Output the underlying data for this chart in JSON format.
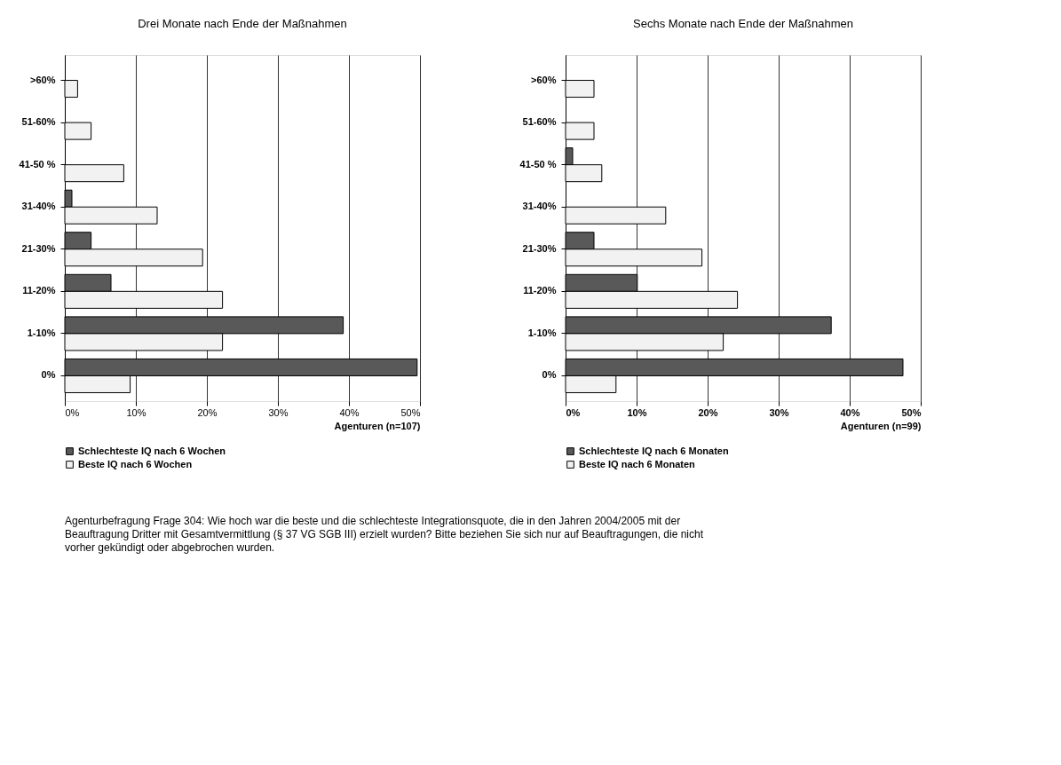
{
  "chart_data": [
    {
      "type": "bar",
      "orientation": "horizontal",
      "title": "Drei Monate nach Ende der Maßnahmen",
      "xlabel": "Agenturen (n=107)",
      "categories": [
        ">60%",
        "51-60%",
        "41-50 %",
        "31-40%",
        "21-30%",
        "11-20%",
        "1-10%",
        "0%"
      ],
      "series": [
        {
          "name": "Schlechteste IQ nach 6 Wochen",
          "color": "#595959",
          "values": [
            null,
            null,
            null,
            1.0,
            3.7,
            6.5,
            39.2,
            49.6
          ]
        },
        {
          "name": "Beste IQ nach 6 Wochen",
          "color": "#f2f2f2",
          "values": [
            1.8,
            3.7,
            8.3,
            13.0,
            19.4,
            22.2,
            22.2,
            9.2
          ]
        }
      ],
      "xlim": [
        0,
        50
      ],
      "xticks": [
        {
          "value": 0,
          "label": "0%"
        },
        {
          "value": 10,
          "label": "10%"
        },
        {
          "value": 20,
          "label": "20%"
        },
        {
          "value": 30,
          "label": "30%"
        },
        {
          "value": 40,
          "label": "40%"
        },
        {
          "value": 50,
          "label": "50%"
        }
      ],
      "grid": "x",
      "legend": "bottom left",
      "annotations": [
        "Agenturbefragung Frage 304: Wie hoch war die beste und die schlechteste Integrationsquote, die in den Jahren 2004/2005 mit der Beauftragung Dritter mit Gesamtvermittlung (§ 37 VG SGB III) erzielt wurden? Bitte beziehen Sie sich nur auf Beauftragungen, die nicht vorher gekündigt oder abgebrochen wurden."
      ]
    },
    {
      "type": "bar",
      "orientation": "horizontal",
      "title": "Sechs Monate nach Ende der Maßnahmen",
      "xlabel": "Agenturen (n=99)",
      "categories": [
        ">60%",
        "51-60%",
        "41-50 %",
        "31-40%",
        "21-30%",
        "11-20%",
        "1-10%",
        "0%"
      ],
      "series": [
        {
          "name": "Schlechteste IQ nach 6 Monaten",
          "color": "#595959",
          "values": [
            null,
            null,
            1.0,
            null,
            4.0,
            10.1,
            37.4,
            47.5
          ]
        },
        {
          "name": "Beste IQ nach 6 Monaten",
          "color": "#f2f2f2",
          "values": [
            4.0,
            4.0,
            5.1,
            14.1,
            19.2,
            24.2,
            22.2,
            7.1
          ]
        }
      ],
      "xlim": [
        0,
        50
      ],
      "xticks": [
        {
          "value": 0,
          "label": "0%"
        },
        {
          "value": 10,
          "label": "10%"
        },
        {
          "value": 20,
          "label": "20%"
        },
        {
          "value": 30,
          "label": "30%"
        },
        {
          "value": 40,
          "label": "40%"
        },
        {
          "value": 50,
          "label": "50%"
        }
      ],
      "grid": "x",
      "legend": "bottom left"
    }
  ]
}
